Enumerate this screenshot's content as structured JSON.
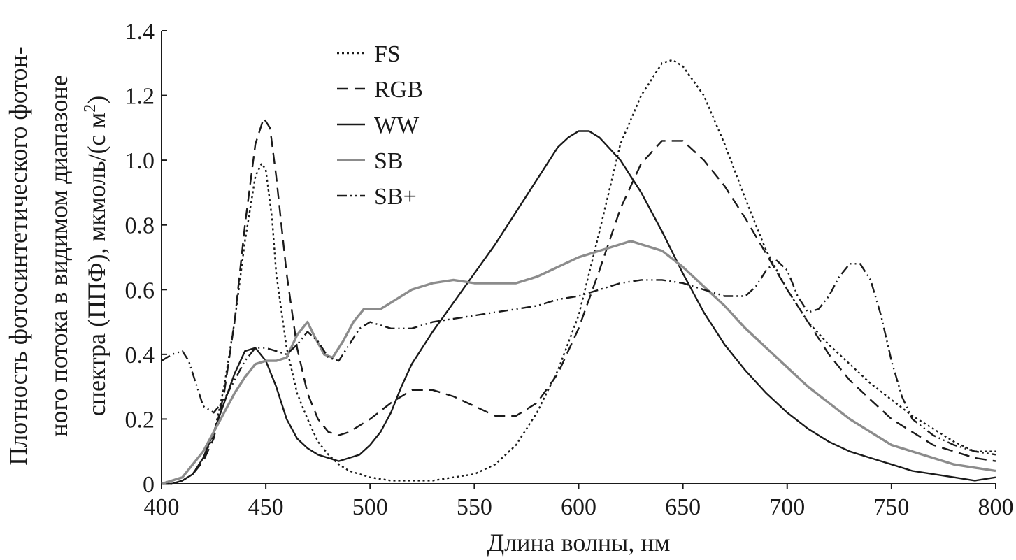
{
  "chart_data": {
    "type": "line",
    "xlabel": "Длина волны, нм",
    "ylabel_lines": [
      "Плотность фотосинтетического фотон-",
      "ного потока в видимом диапазоне",
      "спектра (ППФ), мкмоль/(с м",
      ")"
    ],
    "ylabel_superscript": "2",
    "xlim": [
      400,
      800
    ],
    "ylim": [
      0,
      1.4
    ],
    "x_ticks": [
      "400",
      "450",
      "500",
      "550",
      "600",
      "650",
      "700",
      "750",
      "800"
    ],
    "y_ticks": [
      "0",
      "0.2",
      "0.4",
      "0.6",
      "0.8",
      "1.0",
      "1.2",
      "1.4"
    ],
    "grid": false,
    "legend_position": "top-left",
    "series": [
      {
        "name": "FS",
        "style": "dotted",
        "color": "#1a1a1a",
        "points": [
          [
            400,
            0
          ],
          [
            405,
            0
          ],
          [
            410,
            0.01
          ],
          [
            415,
            0.03
          ],
          [
            420,
            0.08
          ],
          [
            425,
            0.15
          ],
          [
            430,
            0.3
          ],
          [
            435,
            0.5
          ],
          [
            440,
            0.75
          ],
          [
            445,
            0.95
          ],
          [
            448,
            0.99
          ],
          [
            450,
            0.97
          ],
          [
            453,
            0.82
          ],
          [
            455,
            0.65
          ],
          [
            460,
            0.42
          ],
          [
            465,
            0.28
          ],
          [
            470,
            0.2
          ],
          [
            475,
            0.13
          ],
          [
            480,
            0.09
          ],
          [
            485,
            0.06
          ],
          [
            490,
            0.04
          ],
          [
            495,
            0.03
          ],
          [
            500,
            0.02
          ],
          [
            510,
            0.01
          ],
          [
            520,
            0.01
          ],
          [
            530,
            0.01
          ],
          [
            540,
            0.02
          ],
          [
            550,
            0.03
          ],
          [
            560,
            0.06
          ],
          [
            570,
            0.12
          ],
          [
            580,
            0.22
          ],
          [
            590,
            0.35
          ],
          [
            600,
            0.52
          ],
          [
            610,
            0.78
          ],
          [
            620,
            1.05
          ],
          [
            630,
            1.2
          ],
          [
            640,
            1.3
          ],
          [
            645,
            1.31
          ],
          [
            650,
            1.29
          ],
          [
            660,
            1.2
          ],
          [
            670,
            1.05
          ],
          [
            680,
            0.88
          ],
          [
            690,
            0.72
          ],
          [
            700,
            0.6
          ],
          [
            710,
            0.5
          ],
          [
            720,
            0.43
          ],
          [
            730,
            0.37
          ],
          [
            740,
            0.31
          ],
          [
            750,
            0.26
          ],
          [
            760,
            0.21
          ],
          [
            770,
            0.17
          ],
          [
            780,
            0.13
          ],
          [
            790,
            0.1
          ],
          [
            800,
            0.1
          ]
        ]
      },
      {
        "name": "RGB",
        "style": "dashed",
        "color": "#1a1a1a",
        "points": [
          [
            400,
            0
          ],
          [
            405,
            0
          ],
          [
            410,
            0.01
          ],
          [
            415,
            0.03
          ],
          [
            420,
            0.07
          ],
          [
            425,
            0.14
          ],
          [
            430,
            0.28
          ],
          [
            435,
            0.5
          ],
          [
            440,
            0.8
          ],
          [
            445,
            1.05
          ],
          [
            449,
            1.13
          ],
          [
            452,
            1.1
          ],
          [
            455,
            0.95
          ],
          [
            460,
            0.65
          ],
          [
            465,
            0.42
          ],
          [
            470,
            0.28
          ],
          [
            475,
            0.2
          ],
          [
            480,
            0.16
          ],
          [
            485,
            0.15
          ],
          [
            490,
            0.16
          ],
          [
            500,
            0.2
          ],
          [
            510,
            0.25
          ],
          [
            520,
            0.29
          ],
          [
            530,
            0.29
          ],
          [
            540,
            0.27
          ],
          [
            550,
            0.24
          ],
          [
            560,
            0.21
          ],
          [
            570,
            0.21
          ],
          [
            580,
            0.25
          ],
          [
            590,
            0.34
          ],
          [
            600,
            0.48
          ],
          [
            610,
            0.66
          ],
          [
            620,
            0.85
          ],
          [
            630,
            0.99
          ],
          [
            640,
            1.06
          ],
          [
            650,
            1.06
          ],
          [
            660,
            1.0
          ],
          [
            670,
            0.92
          ],
          [
            680,
            0.82
          ],
          [
            690,
            0.71
          ],
          [
            700,
            0.6
          ],
          [
            710,
            0.5
          ],
          [
            720,
            0.4
          ],
          [
            730,
            0.32
          ],
          [
            740,
            0.26
          ],
          [
            750,
            0.2
          ],
          [
            760,
            0.16
          ],
          [
            770,
            0.12
          ],
          [
            780,
            0.1
          ],
          [
            790,
            0.08
          ],
          [
            800,
            0.07
          ]
        ]
      },
      {
        "name": "WW",
        "style": "solid",
        "color": "#1a1a1a",
        "points": [
          [
            400,
            0
          ],
          [
            405,
            0
          ],
          [
            410,
            0.01
          ],
          [
            415,
            0.03
          ],
          [
            420,
            0.08
          ],
          [
            425,
            0.16
          ],
          [
            430,
            0.25
          ],
          [
            435,
            0.34
          ],
          [
            440,
            0.41
          ],
          [
            445,
            0.42
          ],
          [
            450,
            0.38
          ],
          [
            455,
            0.3
          ],
          [
            460,
            0.2
          ],
          [
            465,
            0.14
          ],
          [
            470,
            0.11
          ],
          [
            475,
            0.09
          ],
          [
            480,
            0.08
          ],
          [
            485,
            0.07
          ],
          [
            490,
            0.08
          ],
          [
            495,
            0.09
          ],
          [
            500,
            0.12
          ],
          [
            505,
            0.16
          ],
          [
            510,
            0.22
          ],
          [
            515,
            0.3
          ],
          [
            520,
            0.37
          ],
          [
            530,
            0.47
          ],
          [
            540,
            0.56
          ],
          [
            550,
            0.65
          ],
          [
            560,
            0.74
          ],
          [
            570,
            0.84
          ],
          [
            580,
            0.94
          ],
          [
            590,
            1.04
          ],
          [
            595,
            1.07
          ],
          [
            600,
            1.09
          ],
          [
            605,
            1.09
          ],
          [
            610,
            1.07
          ],
          [
            620,
            1.0
          ],
          [
            630,
            0.9
          ],
          [
            640,
            0.78
          ],
          [
            650,
            0.65
          ],
          [
            660,
            0.53
          ],
          [
            670,
            0.43
          ],
          [
            680,
            0.35
          ],
          [
            690,
            0.28
          ],
          [
            700,
            0.22
          ],
          [
            710,
            0.17
          ],
          [
            720,
            0.13
          ],
          [
            730,
            0.1
          ],
          [
            740,
            0.08
          ],
          [
            750,
            0.06
          ],
          [
            760,
            0.04
          ],
          [
            770,
            0.03
          ],
          [
            780,
            0.02
          ],
          [
            790,
            0.01
          ],
          [
            800,
            0.02
          ]
        ]
      },
      {
        "name": "SB",
        "style": "solid",
        "color": "#8c8c8c",
        "points": [
          [
            400,
            0
          ],
          [
            405,
            0.01
          ],
          [
            410,
            0.02
          ],
          [
            415,
            0.06
          ],
          [
            420,
            0.1
          ],
          [
            425,
            0.16
          ],
          [
            430,
            0.22
          ],
          [
            435,
            0.28
          ],
          [
            440,
            0.33
          ],
          [
            445,
            0.37
          ],
          [
            450,
            0.38
          ],
          [
            455,
            0.38
          ],
          [
            460,
            0.39
          ],
          [
            465,
            0.46
          ],
          [
            470,
            0.5
          ],
          [
            473,
            0.46
          ],
          [
            478,
            0.4
          ],
          [
            482,
            0.39
          ],
          [
            487,
            0.44
          ],
          [
            492,
            0.5
          ],
          [
            497,
            0.54
          ],
          [
            505,
            0.54
          ],
          [
            510,
            0.56
          ],
          [
            520,
            0.6
          ],
          [
            530,
            0.62
          ],
          [
            540,
            0.63
          ],
          [
            550,
            0.62
          ],
          [
            560,
            0.62
          ],
          [
            570,
            0.62
          ],
          [
            580,
            0.64
          ],
          [
            590,
            0.67
          ],
          [
            600,
            0.7
          ],
          [
            610,
            0.72
          ],
          [
            620,
            0.74
          ],
          [
            625,
            0.75
          ],
          [
            630,
            0.74
          ],
          [
            640,
            0.72
          ],
          [
            650,
            0.67
          ],
          [
            660,
            0.61
          ],
          [
            670,
            0.55
          ],
          [
            680,
            0.48
          ],
          [
            690,
            0.42
          ],
          [
            700,
            0.36
          ],
          [
            710,
            0.3
          ],
          [
            720,
            0.25
          ],
          [
            730,
            0.2
          ],
          [
            740,
            0.16
          ],
          [
            750,
            0.12
          ],
          [
            760,
            0.1
          ],
          [
            770,
            0.08
          ],
          [
            780,
            0.06
          ],
          [
            790,
            0.05
          ],
          [
            800,
            0.04
          ]
        ]
      },
      {
        "name": "SB+",
        "style": "dashdotdot",
        "color": "#1a1a1a",
        "points": [
          [
            400,
            0.38
          ],
          [
            405,
            0.4
          ],
          [
            410,
            0.41
          ],
          [
            413,
            0.38
          ],
          [
            417,
            0.3
          ],
          [
            420,
            0.24
          ],
          [
            425,
            0.22
          ],
          [
            430,
            0.26
          ],
          [
            435,
            0.32
          ],
          [
            440,
            0.38
          ],
          [
            445,
            0.42
          ],
          [
            450,
            0.42
          ],
          [
            455,
            0.41
          ],
          [
            460,
            0.4
          ],
          [
            465,
            0.43
          ],
          [
            470,
            0.47
          ],
          [
            475,
            0.44
          ],
          [
            480,
            0.39
          ],
          [
            485,
            0.38
          ],
          [
            490,
            0.43
          ],
          [
            495,
            0.48
          ],
          [
            500,
            0.5
          ],
          [
            505,
            0.49
          ],
          [
            510,
            0.48
          ],
          [
            520,
            0.48
          ],
          [
            530,
            0.5
          ],
          [
            540,
            0.51
          ],
          [
            550,
            0.52
          ],
          [
            560,
            0.53
          ],
          [
            570,
            0.54
          ],
          [
            580,
            0.55
          ],
          [
            590,
            0.57
          ],
          [
            600,
            0.58
          ],
          [
            610,
            0.6
          ],
          [
            620,
            0.62
          ],
          [
            630,
            0.63
          ],
          [
            640,
            0.63
          ],
          [
            650,
            0.62
          ],
          [
            660,
            0.6
          ],
          [
            670,
            0.58
          ],
          [
            680,
            0.58
          ],
          [
            685,
            0.61
          ],
          [
            690,
            0.66
          ],
          [
            695,
            0.69
          ],
          [
            700,
            0.66
          ],
          [
            705,
            0.58
          ],
          [
            710,
            0.53
          ],
          [
            715,
            0.54
          ],
          [
            720,
            0.58
          ],
          [
            725,
            0.64
          ],
          [
            730,
            0.68
          ],
          [
            735,
            0.68
          ],
          [
            740,
            0.63
          ],
          [
            745,
            0.52
          ],
          [
            750,
            0.38
          ],
          [
            755,
            0.27
          ],
          [
            760,
            0.2
          ],
          [
            770,
            0.15
          ],
          [
            780,
            0.12
          ],
          [
            790,
            0.1
          ],
          [
            800,
            0.09
          ]
        ]
      }
    ]
  }
}
